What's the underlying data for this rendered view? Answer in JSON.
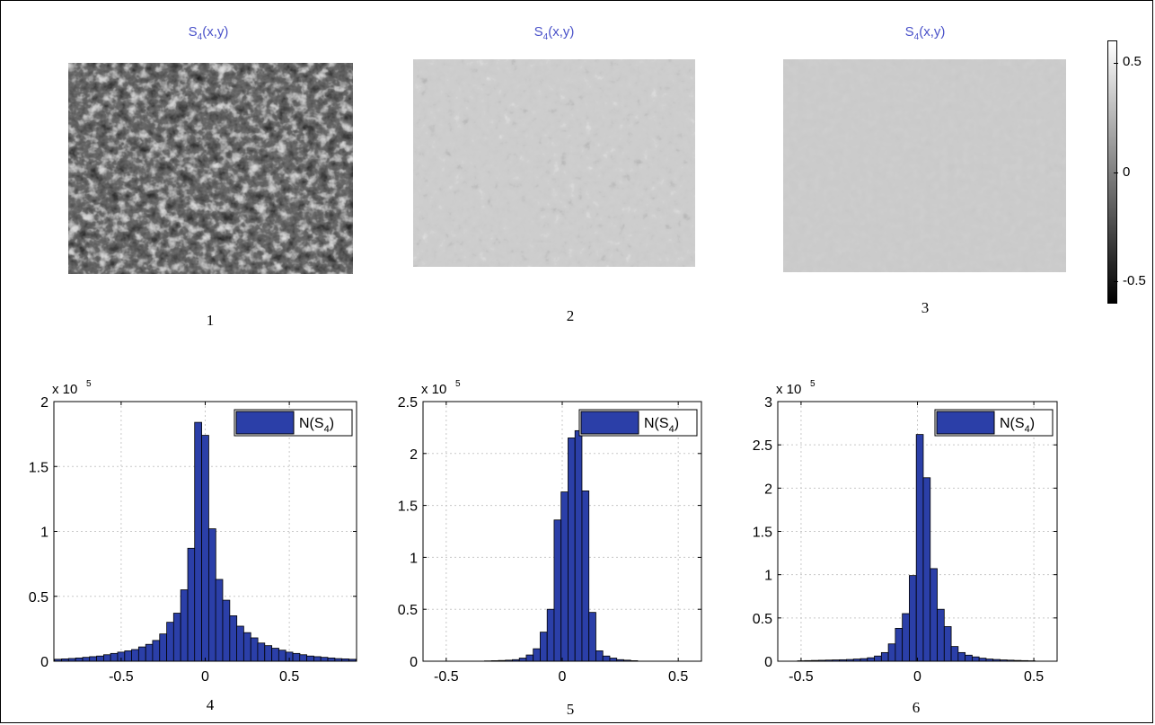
{
  "panels_top": [
    {
      "title_main": "S",
      "title_sub": "4",
      "title_rest": "(x,y)",
      "caption": "1",
      "style": "dark"
    },
    {
      "title_main": "S",
      "title_sub": "4",
      "title_rest": "(x,y)",
      "caption": "2",
      "style": "relief"
    },
    {
      "title_main": "S",
      "title_sub": "4",
      "title_rest": "(x,y)",
      "caption": "3",
      "style": "flat"
    }
  ],
  "colorbar": {
    "ticks": [
      "0.5",
      "0",
      "-0.5"
    ],
    "colors": [
      "#ffffff",
      "#000000"
    ]
  },
  "chart_data": [
    {
      "type": "bar",
      "caption": "4",
      "legend": {
        "main": "N(S",
        "sub": "4",
        "tail": ")"
      },
      "exponent_label": "x 10",
      "exponent_power": "5",
      "xlim": [
        -0.9,
        0.9
      ],
      "ylim": [
        0,
        2
      ],
      "xticks": [
        "-0.5",
        "0",
        "0.5"
      ],
      "xtick_values": [
        -0.5,
        0,
        0.5
      ],
      "yticks": [
        "0",
        "0.5",
        "1",
        "1.5",
        "2"
      ],
      "ytick_values": [
        0,
        0.5,
        1,
        1.5,
        2
      ],
      "bar_color": "#2b3fa8",
      "x": [
        -0.875,
        -0.833,
        -0.792,
        -0.75,
        -0.708,
        -0.667,
        -0.625,
        -0.583,
        -0.542,
        -0.5,
        -0.458,
        -0.417,
        -0.375,
        -0.333,
        -0.292,
        -0.25,
        -0.208,
        -0.167,
        -0.125,
        -0.083,
        -0.042,
        0.0,
        0.042,
        0.083,
        0.125,
        0.167,
        0.208,
        0.25,
        0.292,
        0.333,
        0.375,
        0.417,
        0.458,
        0.5,
        0.542,
        0.583,
        0.625,
        0.667,
        0.708,
        0.75,
        0.792,
        0.833,
        0.875
      ],
      "values": [
        0.015,
        0.018,
        0.021,
        0.025,
        0.03,
        0.035,
        0.04,
        0.05,
        0.06,
        0.07,
        0.08,
        0.09,
        0.11,
        0.13,
        0.16,
        0.21,
        0.3,
        0.37,
        0.55,
        0.87,
        1.84,
        1.74,
        1.02,
        0.63,
        0.47,
        0.35,
        0.27,
        0.22,
        0.18,
        0.14,
        0.12,
        0.1,
        0.085,
        0.07,
        0.06,
        0.05,
        0.04,
        0.035,
        0.03,
        0.025,
        0.02,
        0.018,
        0.015
      ]
    },
    {
      "type": "bar",
      "caption": "5",
      "legend": {
        "main": "N(S",
        "sub": "4",
        "tail": ")"
      },
      "exponent_label": "x 10",
      "exponent_power": "5",
      "xlim": [
        -0.6,
        0.6
      ],
      "ylim": [
        0,
        2.5
      ],
      "xticks": [
        "-0.5",
        "0",
        "0.5"
      ],
      "xtick_values": [
        -0.5,
        0,
        0.5
      ],
      "yticks": [
        "0",
        "0.5",
        "1",
        "1.5",
        "2",
        "2.5"
      ],
      "ytick_values": [
        0,
        0.5,
        1,
        1.5,
        2,
        2.5
      ],
      "bar_color": "#2b3fa8",
      "x": [
        -0.32,
        -0.29,
        -0.26,
        -0.23,
        -0.2,
        -0.17,
        -0.14,
        -0.11,
        -0.08,
        -0.05,
        -0.02,
        0.01,
        0.04,
        0.07,
        0.1,
        0.13,
        0.16,
        0.19,
        0.22,
        0.25,
        0.28,
        0.31
      ],
      "values": [
        0.003,
        0.005,
        0.007,
        0.01,
        0.015,
        0.03,
        0.06,
        0.12,
        0.28,
        0.5,
        1.36,
        1.63,
        2.15,
        2.22,
        1.64,
        0.47,
        0.1,
        0.05,
        0.03,
        0.015,
        0.01,
        0.005
      ]
    },
    {
      "type": "bar",
      "caption": "6",
      "legend": {
        "main": "N(S",
        "sub": "4",
        "tail": ")"
      },
      "exponent_label": "x 10",
      "exponent_power": "5",
      "xlim": [
        -0.6,
        0.6
      ],
      "ylim": [
        0,
        3
      ],
      "xticks": [
        "-0.5",
        "0",
        "0.5"
      ],
      "xtick_values": [
        -0.5,
        0,
        0.5
      ],
      "yticks": [
        "0",
        "0.5",
        "1",
        "1.5",
        "2",
        "2.5",
        "3"
      ],
      "ytick_values": [
        0,
        0.5,
        1,
        1.5,
        2,
        2.5,
        3
      ],
      "bar_color": "#2b3fa8",
      "x": [
        -0.5,
        -0.47,
        -0.44,
        -0.41,
        -0.38,
        -0.35,
        -0.32,
        -0.29,
        -0.26,
        -0.23,
        -0.2,
        -0.17,
        -0.14,
        -0.11,
        -0.08,
        -0.05,
        -0.02,
        0.01,
        0.04,
        0.07,
        0.1,
        0.13,
        0.16,
        0.19,
        0.22,
        0.25,
        0.28,
        0.31,
        0.34,
        0.37,
        0.4,
        0.43,
        0.46,
        0.49
      ],
      "values": [
        0.005,
        0.007,
        0.009,
        0.011,
        0.013,
        0.015,
        0.017,
        0.02,
        0.025,
        0.03,
        0.04,
        0.06,
        0.1,
        0.2,
        0.38,
        0.55,
        0.99,
        2.62,
        2.12,
        1.07,
        0.6,
        0.4,
        0.17,
        0.1,
        0.07,
        0.05,
        0.035,
        0.025,
        0.02,
        0.015,
        0.012,
        0.009,
        0.007,
        0.005
      ]
    }
  ]
}
